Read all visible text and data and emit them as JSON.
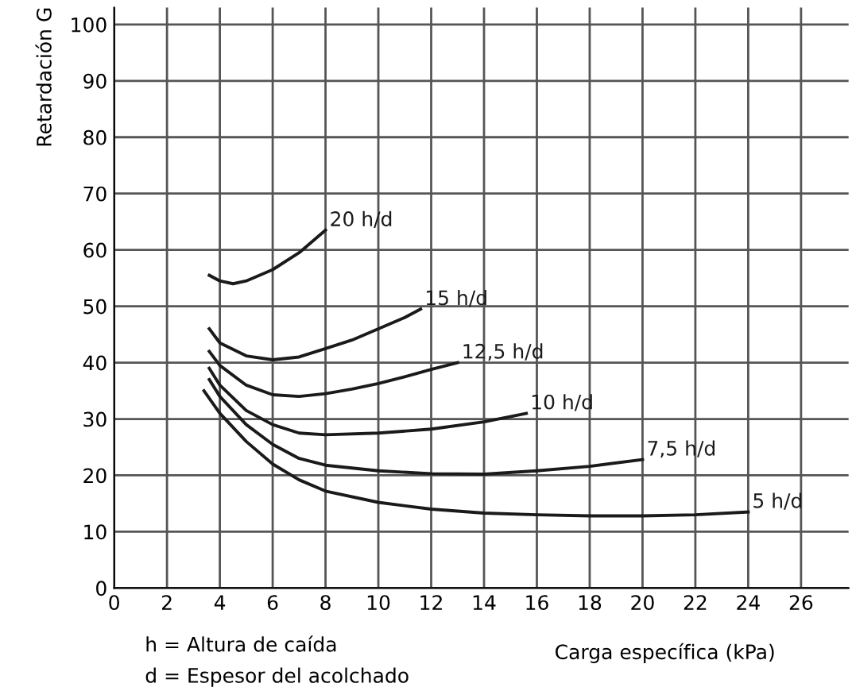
{
  "chart_data": {
    "type": "line",
    "xlabel": "Carga específica (kPa)",
    "ylabel": "Retardación G",
    "xlim": [
      0,
      27.8
    ],
    "ylim": [
      0,
      103
    ],
    "xticks": [
      0,
      2,
      4,
      6,
      8,
      10,
      12,
      14,
      16,
      18,
      20,
      22,
      24,
      26
    ],
    "yticks": [
      0,
      10,
      20,
      30,
      40,
      50,
      60,
      70,
      80,
      90,
      100
    ],
    "grid": true,
    "marker": "none",
    "line_style": "solid",
    "series": [
      {
        "name": "20 h/d",
        "color": "#1a1a1a",
        "x": [
          3.6,
          4,
          4.5,
          5,
          6,
          7,
          8
        ],
        "values": [
          55.5,
          54.5,
          54,
          54.5,
          56.5,
          59.5,
          63.5
        ]
      },
      {
        "name": "15 h/d",
        "color": "#1a1a1a",
        "x": [
          3.6,
          4,
          5,
          6,
          7,
          8,
          9,
          10,
          11,
          11.6
        ],
        "values": [
          46,
          43.5,
          41.2,
          40.5,
          41,
          42.5,
          44,
          46,
          48,
          49.5
        ]
      },
      {
        "name": "12,5 h/d",
        "color": "#1a1a1a",
        "x": [
          3.6,
          4,
          5,
          6,
          7,
          8,
          9,
          10,
          11,
          12,
          13
        ],
        "values": [
          42,
          39.5,
          36,
          34.3,
          34,
          34.5,
          35.3,
          36.3,
          37.5,
          38.8,
          40
        ]
      },
      {
        "name": "10 h/d",
        "color": "#1a1a1a",
        "x": [
          3.6,
          4,
          5,
          6,
          7,
          8,
          10,
          12,
          14,
          15.6
        ],
        "values": [
          39,
          36,
          31.5,
          29,
          27.5,
          27.2,
          27.5,
          28.2,
          29.5,
          31
        ]
      },
      {
        "name": "7,5 h/d",
        "color": "#1a1a1a",
        "x": [
          3.6,
          4,
          5,
          6,
          7,
          8,
          10,
          12,
          14,
          16,
          18,
          20
        ],
        "values": [
          37,
          34,
          29,
          25.5,
          23,
          21.8,
          20.8,
          20.3,
          20.2,
          20.8,
          21.6,
          22.8
        ]
      },
      {
        "name": "5 h/d",
        "color": "#1a1a1a",
        "x": [
          3.4,
          4,
          5,
          6,
          7,
          8,
          10,
          12,
          14,
          16,
          18,
          20,
          22,
          24
        ],
        "values": [
          35,
          31,
          26,
          22,
          19.2,
          17.2,
          15.2,
          14,
          13.3,
          13,
          12.8,
          12.8,
          13,
          13.5
        ]
      }
    ],
    "annotations": [
      "h = Altura de caída",
      "d = Espesor del acolchado"
    ]
  }
}
